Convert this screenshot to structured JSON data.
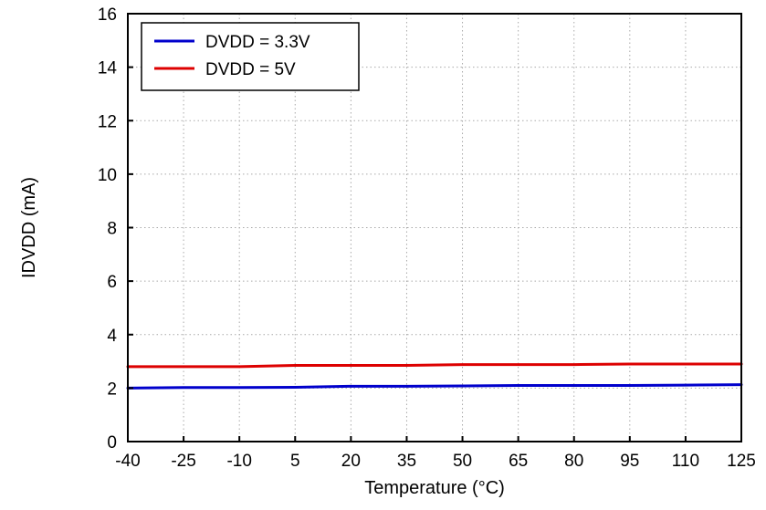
{
  "chart_data": {
    "type": "line",
    "title": "",
    "xlabel": "Temperature (°C)",
    "ylabel": "IDVDD (mA)",
    "xlim": [
      -40,
      125
    ],
    "ylim": [
      0,
      16
    ],
    "xticks": [
      -40,
      -25,
      -10,
      5,
      20,
      35,
      50,
      65,
      80,
      95,
      110,
      125
    ],
    "yticks": [
      0,
      2,
      4,
      6,
      8,
      10,
      12,
      14,
      16
    ],
    "grid": true,
    "legend_position": "top-left",
    "x": [
      -40,
      -25,
      -10,
      5,
      20,
      35,
      50,
      65,
      80,
      95,
      110,
      125
    ],
    "series": [
      {
        "name": "DVDD = 3.3V",
        "color": "#0000cc",
        "values": [
          2.0,
          2.02,
          2.02,
          2.03,
          2.07,
          2.07,
          2.08,
          2.1,
          2.1,
          2.1,
          2.11,
          2.13
        ]
      },
      {
        "name": "DVDD = 5V",
        "color": "#dd0000",
        "values": [
          2.8,
          2.8,
          2.8,
          2.85,
          2.85,
          2.85,
          2.88,
          2.88,
          2.88,
          2.9,
          2.9,
          2.9
        ]
      }
    ]
  },
  "style": {
    "grid_color": "#a9a9a9",
    "axis_color": "#000000",
    "background": "#ffffff",
    "legend_border": "#000000"
  }
}
